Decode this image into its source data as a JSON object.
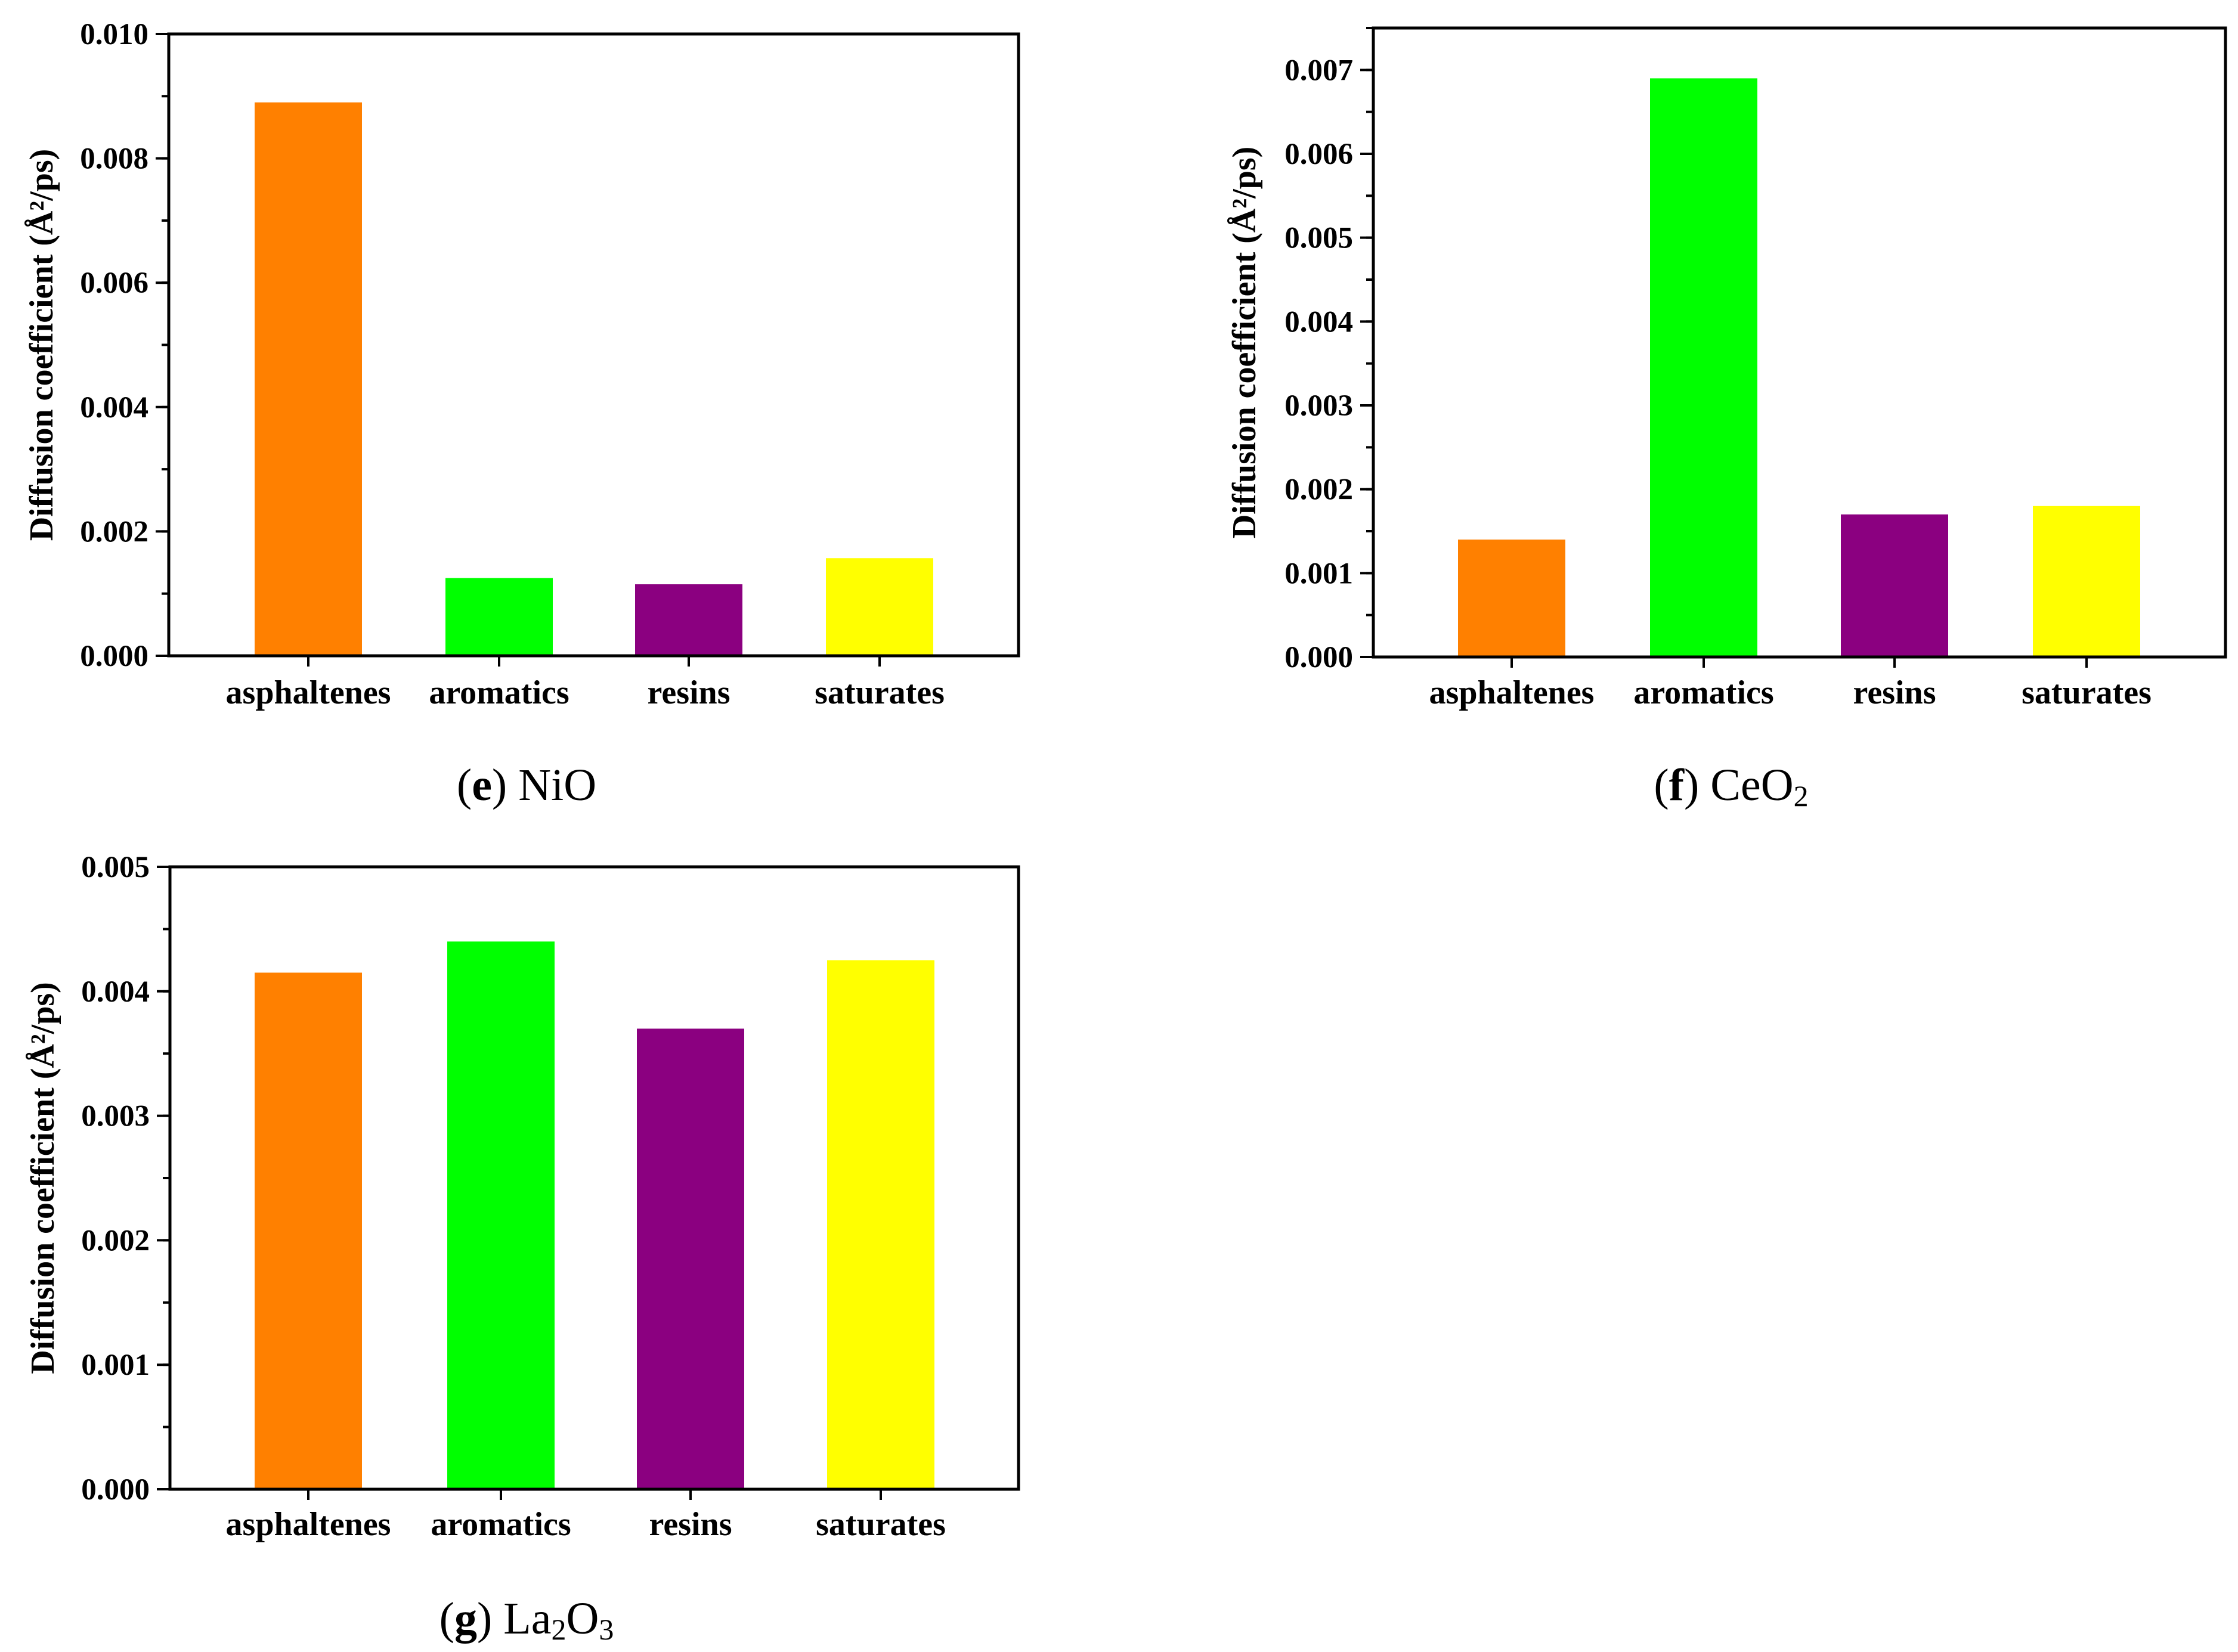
{
  "colors": {
    "asphaltenes": "#ff8000",
    "aromatics": "#00ff00",
    "resins": "#8b0080",
    "saturates": "#ffff00"
  },
  "chart_data": [
    {
      "type": "bar",
      "panel": "e",
      "caption_letter": "e",
      "caption_material": "NiO",
      "caption_subscript": "",
      "caption_subscript_second": "",
      "caption_tail": "",
      "categories": [
        "asphaltenes",
        "aromatics",
        "resins",
        "saturates"
      ],
      "values": [
        0.0089,
        0.00125,
        0.00115,
        0.00157
      ],
      "ylabel": "Diffusion coefficient (Å²/ps)",
      "ylim": [
        0,
        0.01
      ],
      "major_ticks": [
        "0.000",
        "0.002",
        "0.004",
        "0.006",
        "0.008",
        "0.010"
      ],
      "major_tick_values": [
        0,
        0.002,
        0.004,
        0.006,
        0.008,
        0.01
      ],
      "minor_step": 0.001
    },
    {
      "type": "bar",
      "panel": "f",
      "caption_letter": "f",
      "caption_material": "CeO",
      "caption_subscript": "2",
      "caption_subscript_second": "",
      "caption_tail": "",
      "categories": [
        "asphaltenes",
        "aromatics",
        "resins",
        "saturates"
      ],
      "values": [
        0.0014,
        0.0069,
        0.0017,
        0.0018
      ],
      "ylabel": "Diffusion coefficient (Å²/ps)",
      "ylim": [
        0,
        0.0075
      ],
      "major_ticks": [
        "0.000",
        "0.001",
        "0.002",
        "0.003",
        "0.004",
        "0.005",
        "0.006",
        "0.007"
      ],
      "major_tick_values": [
        0,
        0.001,
        0.002,
        0.003,
        0.004,
        0.005,
        0.006,
        0.007
      ],
      "minor_step": 0.0005
    },
    {
      "type": "bar",
      "panel": "g",
      "caption_letter": "g",
      "caption_material": "La",
      "caption_subscript": "2",
      "caption_subscript_second": "3",
      "caption_tail": "O",
      "categories": [
        "asphaltenes",
        "aromatics",
        "resins",
        "saturates"
      ],
      "values": [
        0.00415,
        0.0044,
        0.0037,
        0.00425
      ],
      "ylabel": "Diffusion coefficient (Å²/ps)",
      "ylim": [
        0,
        0.005
      ],
      "major_ticks": [
        "0.000",
        "0.001",
        "0.002",
        "0.003",
        "0.004",
        "0.005"
      ],
      "major_tick_values": [
        0,
        0.001,
        0.002,
        0.003,
        0.004,
        0.005
      ],
      "minor_step": 0.0005
    }
  ]
}
